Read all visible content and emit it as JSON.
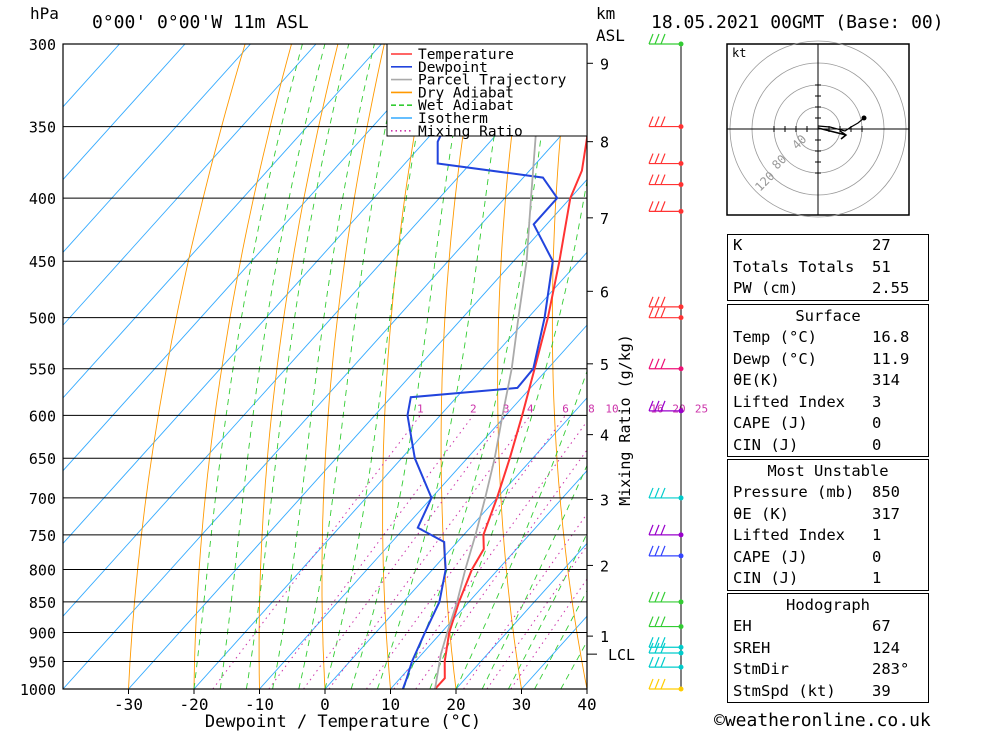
{
  "header": {
    "hpa_unit": "hPa",
    "location": "0°00' 0°00'W 11m ASL",
    "km_unit": "km",
    "asl_label": "ASL",
    "datetime": "18.05.2021 00GMT (Base: 00)"
  },
  "chart_data": {
    "type": "line",
    "title": "",
    "xlabel": "Dewpoint / Temperature (°C)",
    "ylabel": "hPa",
    "xlim": [
      -40,
      40
    ],
    "pressure_range": [
      1000,
      300
    ],
    "x_ticks": [
      -30,
      -20,
      -10,
      0,
      10,
      20,
      30,
      40
    ],
    "pressure_ticks": [
      300,
      350,
      400,
      450,
      500,
      550,
      600,
      650,
      700,
      750,
      800,
      850,
      900,
      950,
      1000
    ],
    "height_ticks_km": [
      {
        "label": "1",
        "p": 906
      },
      {
        "label": "2",
        "p": 794
      },
      {
        "label": "3",
        "p": 702
      },
      {
        "label": "4",
        "p": 622
      },
      {
        "label": "5",
        "p": 545
      },
      {
        "label": "6",
        "p": 476
      },
      {
        "label": "7",
        "p": 415
      },
      {
        "label": "8",
        "p": 360
      },
      {
        "label": "9",
        "p": 311
      }
    ],
    "lcl_label": "LCL",
    "lcl_pressure": 937,
    "mixing_ratio_axis_label": "Mixing Ratio (g/kg)",
    "mixing_ratio_labels": [
      "1",
      "2",
      "3",
      "4",
      "6",
      "8",
      "10",
      "16",
      "20",
      "25"
    ],
    "legend": {
      "placement": "top",
      "entries": [
        {
          "name": "Temperature",
          "color": "#ff3333",
          "style": "solid"
        },
        {
          "name": "Dewpoint",
          "color": "#2244dd",
          "style": "solid"
        },
        {
          "name": "Parcel Trajectory",
          "color": "#aaaaaa",
          "style": "solid"
        },
        {
          "name": "Dry Adiabat",
          "color": "#ff9900",
          "style": "solid"
        },
        {
          "name": "Wet Adiabat",
          "color": "#33cc33",
          "style": "dashed"
        },
        {
          "name": "Isotherm",
          "color": "#33aaff",
          "style": "solid"
        },
        {
          "name": "Mixing Ratio",
          "color": "#cc33aa",
          "style": "dotted"
        }
      ]
    },
    "series": [
      {
        "name": "Temperature",
        "color": "#ff3333",
        "points": [
          [
            1000,
            16.8
          ],
          [
            980,
            16.8
          ],
          [
            950,
            14.5
          ],
          [
            900,
            11.2
          ],
          [
            850,
            8.5
          ],
          [
            800,
            6.0
          ],
          [
            770,
            5.0
          ],
          [
            750,
            3.0
          ],
          [
            700,
            0.0
          ],
          [
            650,
            -3.5
          ],
          [
            600,
            -7.5
          ],
          [
            550,
            -12.0
          ],
          [
            500,
            -17.0
          ],
          [
            450,
            -23.0
          ],
          [
            400,
            -30.0
          ],
          [
            380,
            -32.0
          ],
          [
            350,
            -37.0
          ],
          [
            300,
            -46.0
          ]
        ]
      },
      {
        "name": "Dewpoint",
        "color": "#2244dd",
        "points": [
          [
            1000,
            11.9
          ],
          [
            980,
            11.0
          ],
          [
            950,
            9.5
          ],
          [
            900,
            7.5
          ],
          [
            850,
            5.5
          ],
          [
            800,
            2.0
          ],
          [
            780,
            0.0
          ],
          [
            760,
            -2.0
          ],
          [
            740,
            -8.0
          ],
          [
            700,
            -10.0
          ],
          [
            650,
            -18.0
          ],
          [
            600,
            -25.0
          ],
          [
            580,
            -27.0
          ],
          [
            570,
            -12.0
          ],
          [
            550,
            -12.2
          ],
          [
            500,
            -17.5
          ],
          [
            450,
            -24.0
          ],
          [
            420,
            -32.0
          ],
          [
            400,
            -32.0
          ],
          [
            385,
            -37.0
          ],
          [
            375,
            -55.0
          ],
          [
            360,
            -58.0
          ],
          [
            340,
            -60.0
          ],
          [
            300,
            -65.0
          ]
        ]
      },
      {
        "name": "Parcel Trajectory",
        "color": "#aaaaaa",
        "points": [
          [
            1000,
            16.8
          ],
          [
            937,
            12.9
          ],
          [
            900,
            10.9
          ],
          [
            850,
            8.2
          ],
          [
            800,
            5.0
          ],
          [
            750,
            1.8
          ],
          [
            700,
            -1.8
          ],
          [
            650,
            -5.8
          ],
          [
            600,
            -10.5
          ],
          [
            550,
            -15.5
          ],
          [
            500,
            -21.5
          ],
          [
            450,
            -28.0
          ],
          [
            400,
            -36.0
          ],
          [
            350,
            -45.0
          ],
          [
            300,
            -56.0
          ]
        ]
      }
    ],
    "wind_barbs": [
      {
        "p": 300,
        "color": "#33cc33"
      },
      {
        "p": 350,
        "color": "#ff3333"
      },
      {
        "p": 375,
        "color": "#ff3333"
      },
      {
        "p": 390,
        "color": "#ff3333"
      },
      {
        "p": 410,
        "color": "#ff3333"
      },
      {
        "p": 490,
        "color": "#ff3333"
      },
      {
        "p": 500,
        "color": "#ff3333"
      },
      {
        "p": 550,
        "color": "#ee1177"
      },
      {
        "p": 595,
        "color": "#9900cc"
      },
      {
        "p": 700,
        "color": "#00cccc"
      },
      {
        "p": 750,
        "color": "#9900cc"
      },
      {
        "p": 780,
        "color": "#3344ff"
      },
      {
        "p": 850,
        "color": "#33cc33"
      },
      {
        "p": 890,
        "color": "#33cc33"
      },
      {
        "p": 925,
        "color": "#00cccc"
      },
      {
        "p": 935,
        "color": "#00cccc"
      },
      {
        "p": 960,
        "color": "#00cccc"
      },
      {
        "p": 1000,
        "color": "#ffcc00"
      }
    ],
    "hodograph": {
      "unit_label": "kt",
      "ring_labels": [
        "40",
        "80",
        "120"
      ]
    }
  },
  "indices": {
    "rows": [
      {
        "label": "K",
        "value": "27"
      },
      {
        "label": "Totals Totals",
        "value": "51"
      },
      {
        "label": "PW (cm)",
        "value": "2.55"
      }
    ]
  },
  "surface": {
    "title": "Surface",
    "rows": [
      {
        "label": "Temp (°C)",
        "value": "16.8"
      },
      {
        "label": "Dewp (°C)",
        "value": "11.9"
      },
      {
        "label": "θE(K)",
        "value": "314"
      },
      {
        "label": "Lifted Index",
        "value": "3"
      },
      {
        "label": "CAPE (J)",
        "value": "0"
      },
      {
        "label": "CIN (J)",
        "value": "0"
      }
    ]
  },
  "most_unstable": {
    "title": "Most Unstable",
    "rows": [
      {
        "label": "Pressure (mb)",
        "value": "850"
      },
      {
        "label": "θE (K)",
        "value": "317"
      },
      {
        "label": "Lifted Index",
        "value": "1"
      },
      {
        "label": "CAPE (J)",
        "value": "0"
      },
      {
        "label": "CIN (J)",
        "value": "1"
      }
    ]
  },
  "hodograph_params": {
    "title": "Hodograph",
    "rows": [
      {
        "label": "EH",
        "value": "67"
      },
      {
        "label": "SREH",
        "value": "124"
      },
      {
        "label": "StmDir",
        "value": "283°"
      },
      {
        "label": "StmSpd (kt)",
        "value": "39"
      }
    ]
  },
  "footer": {
    "copyright": "©weatheronline.co.uk"
  }
}
